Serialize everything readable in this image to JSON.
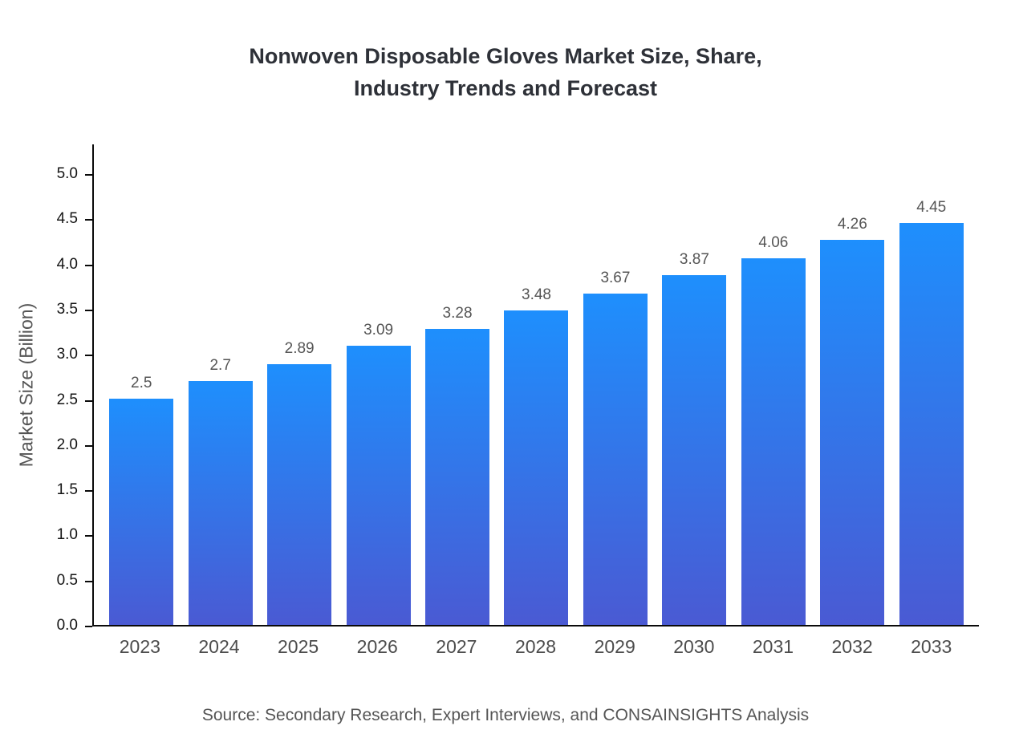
{
  "chart_data": {
    "type": "bar",
    "title": "Nonwoven Disposable Gloves Market Size, Share, Industry Trends and Forecast",
    "title_lines": [
      "Nonwoven Disposable Gloves Market Size, Share,",
      "Industry Trends and Forecast"
    ],
    "categories": [
      "2023",
      "2024",
      "2025",
      "2026",
      "2027",
      "2028",
      "2029",
      "2030",
      "2031",
      "2032",
      "2033"
    ],
    "values": [
      2.5,
      2.7,
      2.89,
      3.09,
      3.28,
      3.48,
      3.67,
      3.87,
      4.06,
      4.26,
      4.45
    ],
    "value_labels": [
      "2.5",
      "2.7",
      "2.89",
      "3.09",
      "3.28",
      "3.48",
      "3.67",
      "3.87",
      "4.06",
      "4.26",
      "4.45"
    ],
    "xlabel": "",
    "ylabel": "Market Size (Billion)",
    "ylim": [
      0,
      5.34
    ],
    "yticks": [
      0.0,
      0.5,
      1.0,
      1.5,
      2.0,
      2.5,
      3.0,
      3.5,
      4.0,
      4.5,
      5.0
    ],
    "ytick_labels": [
      "0.0",
      "0.5",
      "1.0",
      "1.5",
      "2.0",
      "2.5",
      "3.0",
      "3.5",
      "4.0",
      "4.5",
      "5.0"
    ],
    "grid": false,
    "legend": false,
    "bar_gradient_top": "#1e8ffd",
    "bar_gradient_bottom": "#4a5ad3",
    "axis_color": "#0a0a0a",
    "source": "Source: Secondary Research, Expert Interviews, and CONSAINSIGHTS Analysis"
  }
}
